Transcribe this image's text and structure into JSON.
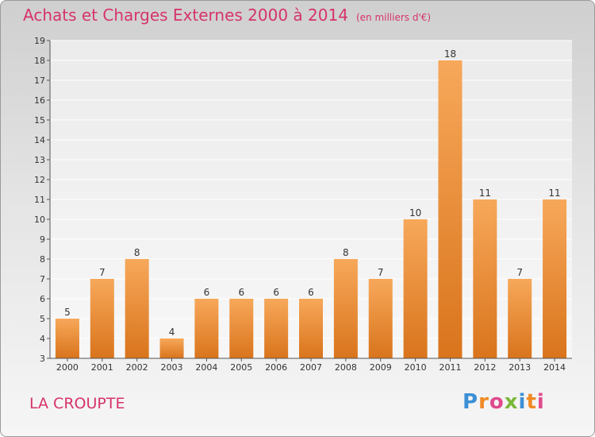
{
  "title": "Achats et Charges Externes 2000 à 2014",
  "subtitle": "(en milliers d'€)",
  "location": "LA CROUPTE",
  "logo": {
    "letters": [
      "P",
      "r",
      "o",
      "x",
      "i",
      "t",
      "i"
    ],
    "colors": [
      "#3d8fd6",
      "#f08a24",
      "#e04a8c",
      "#7ab83a",
      "#3d8fd6",
      "#f08a24",
      "#e04a8c"
    ]
  },
  "colors": {
    "bar_top": "#f7a85a",
    "bar_bottom": "#d9741c",
    "title": "#d6336c"
  },
  "chart_data": {
    "type": "bar",
    "categories": [
      "2000",
      "2001",
      "2002",
      "2003",
      "2004",
      "2005",
      "2006",
      "2007",
      "2008",
      "2009",
      "2010",
      "2011",
      "2012",
      "2013",
      "2014"
    ],
    "values": [
      5,
      7,
      8,
      4,
      6,
      6,
      6,
      6,
      8,
      7,
      10,
      18,
      11,
      7,
      11
    ],
    "ylim": [
      3,
      19
    ],
    "yticks": [
      3,
      4,
      5,
      6,
      7,
      8,
      9,
      10,
      11,
      12,
      13,
      14,
      15,
      16,
      17,
      18,
      19
    ],
    "grid": true,
    "data_labels": true
  }
}
